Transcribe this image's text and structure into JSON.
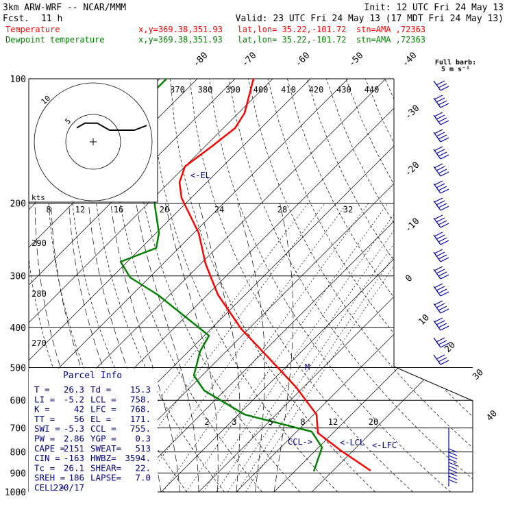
{
  "header": {
    "model": "3km ARW-WRF -- NCAR/MMM",
    "init": "Init: 12 UTC Fri 24 May 13",
    "fcst_label": "Fcst.",
    "fcst_hours": "11 h",
    "valid": "Valid: 23 UTC Fri 24 May 13 (17 MDT Fri 24 May 13)"
  },
  "legend": [
    {
      "name": "Temperature",
      "color": "#ff0000",
      "info": "x,y=369.38,351.93   lat,lon= 35.22,-101.72  stn=AMA ,72363"
    },
    {
      "name": "Dewpoint temperature",
      "color": "#008000",
      "info": "x,y=369.38,351.93   lat,lon= 35.22,-101.72  stn=AMA ,72363"
    }
  ],
  "barb_key": {
    "title": "Full barb:",
    "value": "5 m s⁻¹"
  },
  "parcel_info": {
    "title": "Parcel Info",
    "rows": [
      [
        "T  =",
        "26.3",
        "Td =",
        "15.3"
      ],
      [
        "LI =",
        "-5.2",
        "LCL =",
        "758."
      ],
      [
        "K  =",
        "42",
        "LFC =",
        "768."
      ],
      [
        "TT =",
        "56",
        "EL =",
        "171."
      ],
      [
        "SWI =",
        "-5.3",
        "CCL =",
        "755."
      ],
      [
        "PW =",
        "2.86",
        "YGP =",
        "0.3"
      ],
      [
        "CAPE =",
        "2151",
        "SWEAT=",
        "513"
      ],
      [
        "CIN =",
        "-163",
        "HWBZ=",
        "3594."
      ],
      [
        "Tc =",
        "26.1",
        "SHEAR=",
        "22."
      ],
      [
        "SREH =",
        "186",
        "LAPSE=",
        "7.0"
      ],
      [
        "CELL =",
        "220/17",
        "",
        ""
      ]
    ]
  },
  "hodograph": {
    "unit_label": "kts",
    "rings": [
      "5",
      "10"
    ]
  },
  "chart_data": {
    "type": "line",
    "title": "",
    "y_axis": {
      "label": "",
      "scale": "log",
      "ticks": [
        100,
        200,
        300,
        400,
        500,
        600,
        700,
        800,
        900,
        1000
      ]
    },
    "x_axis": {
      "label": "",
      "range_C": [
        -40,
        40
      ],
      "skewed": true
    },
    "isotherm_labels": [
      "-80",
      "-70",
      "-60",
      "-50",
      "-40",
      "-30",
      "-20",
      "-10",
      "0",
      "10",
      "20",
      "30",
      "40"
    ],
    "theta_labels": [
      "370",
      "380",
      "390",
      "400",
      "410",
      "420",
      "430",
      "440"
    ],
    "theta_e_labels": [
      "290",
      "280",
      "270"
    ],
    "mixing_ratio_labels_top": [
      "8",
      "12",
      "16",
      "20",
      "24",
      "28",
      "32"
    ],
    "mixing_ratio_labels_bottom": [
      "2",
      "3",
      "5",
      "8",
      "12",
      "20"
    ],
    "markers": {
      "el": "<-EL",
      "ccl": "CCL->",
      "lcl": "<-LCL",
      "lfc": "<-LFC",
      "m": "M"
    },
    "series": [
      {
        "name": "Temperature",
        "color": "#ff0000",
        "points": [
          [
            100,
            -55
          ],
          [
            135,
            -57
          ],
          [
            160,
            -58
          ],
          [
            180,
            -57
          ],
          [
            200,
            -53
          ],
          [
            250,
            -42
          ],
          [
            300,
            -33
          ],
          [
            350,
            -24
          ],
          [
            400,
            -15
          ],
          [
            450,
            -8
          ],
          [
            500,
            -3
          ],
          [
            600,
            7
          ],
          [
            700,
            13
          ],
          [
            750,
            17
          ],
          [
            800,
            21
          ],
          [
            860,
            27
          ],
          [
            890,
            33
          ]
        ]
      },
      {
        "name": "Dewpoint temperature",
        "color": "#008000",
        "points": [
          [
            100,
            -80
          ],
          [
            115,
            -85
          ],
          [
            135,
            -87
          ],
          [
            160,
            -88
          ],
          [
            190,
            -89
          ],
          [
            240,
            -85
          ],
          [
            275,
            -77
          ],
          [
            300,
            -65
          ],
          [
            400,
            -30
          ],
          [
            460,
            -25
          ],
          [
            505,
            -26
          ],
          [
            530,
            -22
          ],
          [
            600,
            -12
          ],
          [
            650,
            -3
          ],
          [
            700,
            6
          ],
          [
            750,
            11
          ],
          [
            800,
            13
          ],
          [
            880,
            14
          ]
        ]
      }
    ],
    "wind_barbs": [
      {
        "p": 100,
        "dir": 260,
        "spd": 15
      },
      {
        "p": 125,
        "dir": 260,
        "spd": 20
      },
      {
        "p": 150,
        "dir": 255,
        "spd": 25
      },
      {
        "p": 175,
        "dir": 255,
        "spd": 25
      },
      {
        "p": 200,
        "dir": 250,
        "spd": 25
      },
      {
        "p": 225,
        "dir": 250,
        "spd": 25
      },
      {
        "p": 250,
        "dir": 250,
        "spd": 20
      },
      {
        "p": 275,
        "dir": 250,
        "spd": 20
      },
      {
        "p": 300,
        "dir": 245,
        "spd": 25
      },
      {
        "p": 325,
        "dir": 245,
        "spd": 25
      },
      {
        "p": 350,
        "dir": 240,
        "spd": 25
      },
      {
        "p": 375,
        "dir": 240,
        "spd": 20
      },
      {
        "p": 400,
        "dir": 235,
        "spd": 20
      },
      {
        "p": 425,
        "dir": 230,
        "spd": 20
      },
      {
        "p": 450,
        "dir": 225,
        "spd": 20
      },
      {
        "p": 475,
        "dir": 220,
        "spd": 15
      },
      {
        "p": 500,
        "dir": 220,
        "spd": 15
      }
    ],
    "hodo_path": [
      [
        -8,
        6
      ],
      [
        -4,
        8
      ],
      [
        2,
        8
      ],
      [
        6,
        6
      ],
      [
        8,
        5
      ],
      [
        14,
        5
      ],
      [
        20,
        5
      ],
      [
        26,
        7
      ]
    ],
    "colors": {
      "grid": "#000000",
      "isotherm": "#000000",
      "adiabat": "#000000",
      "barbs": "#0000aa",
      "text_blue": "#000080"
    }
  }
}
